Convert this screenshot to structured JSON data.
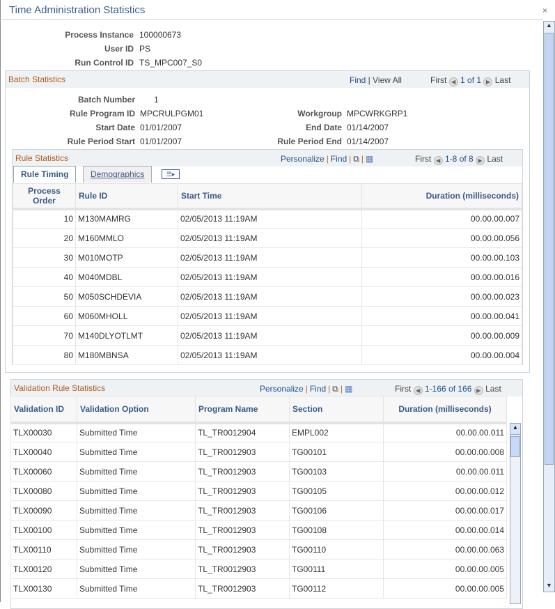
{
  "window": {
    "title": "Time Administration Statistics",
    "close": "×"
  },
  "header": {
    "process_instance_label": "Process Instance",
    "process_instance": "100000673",
    "user_id_label": "User ID",
    "user_id": "PS",
    "run_control_label": "Run Control ID",
    "run_control": "TS_MPC007_S0"
  },
  "batch": {
    "title": "Batch Statistics",
    "find": "Find",
    "view_all": "View All",
    "first": "First",
    "range": "1 of 1",
    "last": "Last",
    "batch_number_label": "Batch Number",
    "batch_number": "1",
    "rule_program_label": "Rule Program ID",
    "rule_program": "MPCRULPGM01",
    "workgroup_label": "Workgroup",
    "workgroup": "MPCWRKGRP1",
    "start_date_label": "Start Date",
    "start_date": "01/01/2007",
    "end_date_label": "End Date",
    "end_date": "01/14/2007",
    "rp_start_label": "Rule Period Start",
    "rp_start": "01/01/2007",
    "rp_end_label": "Rule Period End",
    "rp_end": "01/14/2007"
  },
  "rules": {
    "title": "Rule Statistics",
    "personalize": "Personalize",
    "find": "Find",
    "first": "First",
    "range": "1-8 of 8",
    "last": "Last",
    "tabs": [
      "Rule Timing",
      "Demographics"
    ],
    "columns": [
      "Process Order",
      "Rule ID",
      "Start Time",
      "Duration (milliseconds)"
    ],
    "rows": [
      [
        "10",
        "M130MAMRG",
        "02/05/2013 11:19AM",
        "00.00.00.007"
      ],
      [
        "20",
        "M160MMLO",
        "02/05/2013 11:19AM",
        "00.00.00.056"
      ],
      [
        "30",
        "M010MOTP",
        "02/05/2013 11:19AM",
        "00.00.00.103"
      ],
      [
        "40",
        "M040MDBL",
        "02/05/2013 11:19AM",
        "00.00.00.016"
      ],
      [
        "50",
        "M050SCHDEVIA",
        "02/05/2013 11:19AM",
        "00.00.00.023"
      ],
      [
        "60",
        "M060MHOLL",
        "02/05/2013 11:19AM",
        "00.00.00.041"
      ],
      [
        "70",
        "M140DLYOTLMT",
        "02/05/2013 11:19AM",
        "00.00.00.009"
      ],
      [
        "80",
        "M180MBNSA",
        "02/05/2013 11:19AM",
        "00.00.00.004"
      ]
    ]
  },
  "validation": {
    "title": "Validation Rule Statistics",
    "personalize": "Personalize",
    "find": "Find",
    "first": "First",
    "range": "1-166 of 166",
    "last": "Last",
    "columns": [
      "Validation ID",
      "Validation Option",
      "Program Name",
      "Section",
      "Duration (milliseconds)"
    ],
    "rows": [
      [
        "TLX00030",
        "Submitted Time",
        "TL_TR0012904",
        "EMPL002",
        "00.00.00.011"
      ],
      [
        "TLX00040",
        "Submitted Time",
        "TL_TR0012903",
        "TG00101",
        "00.00.00.008"
      ],
      [
        "TLX00060",
        "Submitted Time",
        "TL_TR0012903",
        "TG00103",
        "00.00.00.011"
      ],
      [
        "TLX00080",
        "Submitted Time",
        "TL_TR0012903",
        "TG00105",
        "00.00.00.012"
      ],
      [
        "TLX00090",
        "Submitted Time",
        "TL_TR0012903",
        "TG00106",
        "00.00.00.017"
      ],
      [
        "TLX00100",
        "Submitted Time",
        "TL_TR0012903",
        "TG00108",
        "00.00.00.014"
      ],
      [
        "TLX00110",
        "Submitted Time",
        "TL_TR0012903",
        "TG00110",
        "00.00.00.063"
      ],
      [
        "TLX00120",
        "Submitted Time",
        "TL_TR0012903",
        "TG00111",
        "00.00.00.005"
      ],
      [
        "TLX00130",
        "Submitted Time",
        "TL_TR0012903",
        "TG00112",
        "00.00.00.005"
      ]
    ]
  }
}
